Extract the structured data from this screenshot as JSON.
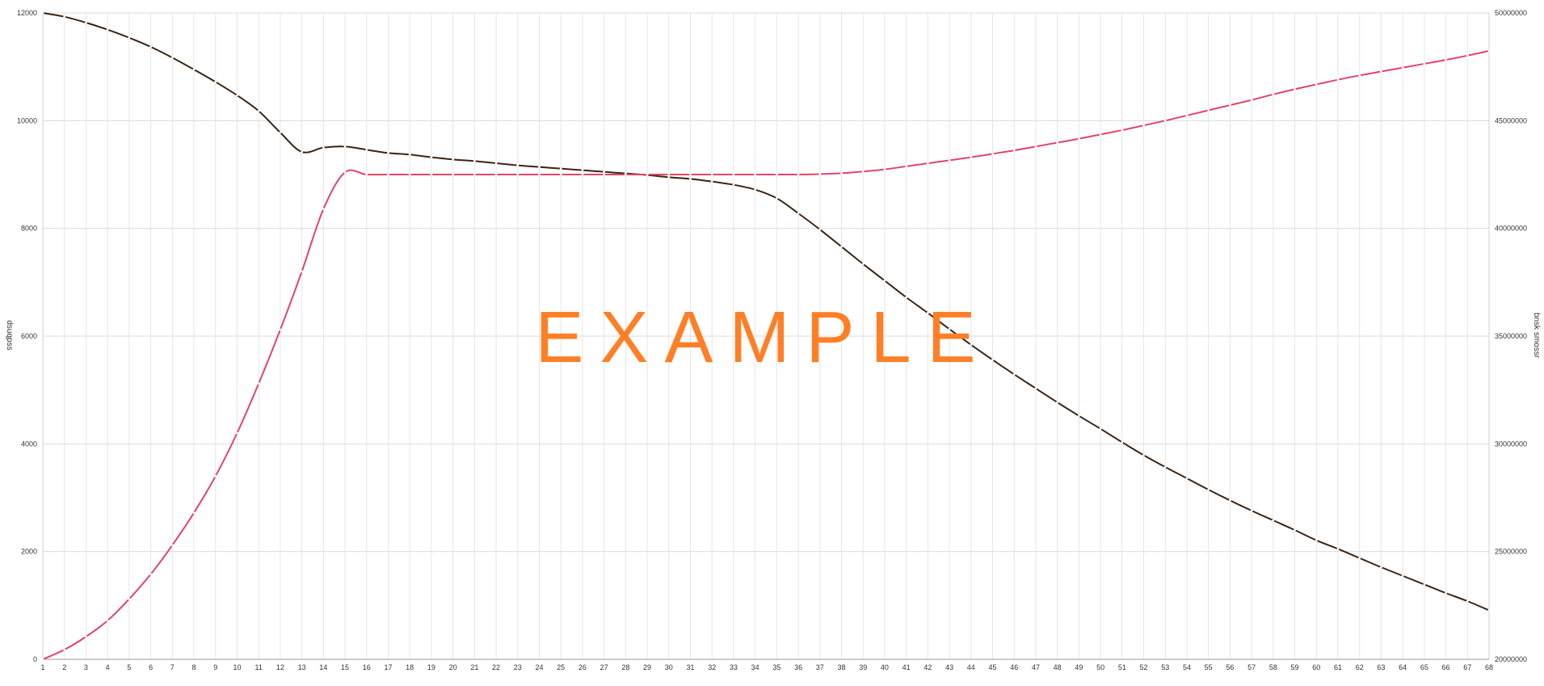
{
  "chart_data": {
    "type": "line",
    "x": [
      1,
      2,
      3,
      4,
      5,
      6,
      7,
      8,
      9,
      10,
      11,
      12,
      13,
      14,
      15,
      16,
      17,
      18,
      19,
      20,
      21,
      22,
      23,
      24,
      25,
      26,
      27,
      28,
      29,
      30,
      31,
      32,
      33,
      34,
      35,
      36,
      37,
      38,
      39,
      40,
      41,
      42,
      43,
      44,
      45,
      46,
      47,
      48,
      49,
      50,
      51,
      52,
      53,
      54,
      55,
      56,
      57,
      58,
      59,
      60,
      61,
      62,
      63,
      64,
      65,
      66,
      67,
      68
    ],
    "xlim": [
      1,
      68
    ],
    "ylim_left": [
      0,
      12000
    ],
    "ylim_right": [
      20000000,
      50000000
    ],
    "yticks_left": [
      0,
      2000,
      4000,
      6000,
      8000,
      10000,
      12000
    ],
    "yticks_right": [
      20000000,
      25000000,
      30000000,
      35000000,
      40000000,
      45000000,
      50000000
    ],
    "ylabel_left": "dsuqpss",
    "ylabel_right": "bnsk smossr",
    "grid": true,
    "watermark": "EXAMPLE",
    "series": [
      {
        "axis": "left",
        "color": "#3b2412",
        "values": [
          12000,
          11930,
          11820,
          11690,
          11540,
          11370,
          11170,
          10950,
          10720,
          10470,
          10180,
          9780,
          9420,
          9500,
          9520,
          9460,
          9400,
          9370,
          9320,
          9280,
          9250,
          9210,
          9170,
          9140,
          9110,
          9080,
          9050,
          9020,
          8990,
          8950,
          8920,
          8870,
          8810,
          8720,
          8560,
          8280,
          7980,
          7660,
          7340,
          7030,
          6720,
          6430,
          6130,
          5840,
          5560,
          5290,
          5030,
          4770,
          4520,
          4280,
          4030,
          3790,
          3570,
          3360,
          3150,
          2950,
          2760,
          2580,
          2400,
          2210,
          2050,
          1880,
          1710,
          1550,
          1390,
          1230,
          1080,
          910
        ]
      },
      {
        "axis": "right",
        "color": "#e0456a",
        "values": [
          20000000,
          20450000,
          21050000,
          21800000,
          22800000,
          23950000,
          25300000,
          26800000,
          28500000,
          30500000,
          32800000,
          35300000,
          38000000,
          40900000,
          42600000,
          42500000,
          42500000,
          42500000,
          42500000,
          42500000,
          42500000,
          42500000,
          42500000,
          42500000,
          42500000,
          42500000,
          42500000,
          42500000,
          42500000,
          42500000,
          42500000,
          42500000,
          42500000,
          42500000,
          42500000,
          42500000,
          42520000,
          42560000,
          42640000,
          42740000,
          42880000,
          43020000,
          43160000,
          43300000,
          43460000,
          43620000,
          43800000,
          43980000,
          44160000,
          44360000,
          44560000,
          44780000,
          45000000,
          45240000,
          45480000,
          45720000,
          45960000,
          46220000,
          46460000,
          46680000,
          46900000,
          47100000,
          47280000,
          47460000,
          47640000,
          47820000,
          48020000,
          48240000
        ]
      }
    ]
  }
}
